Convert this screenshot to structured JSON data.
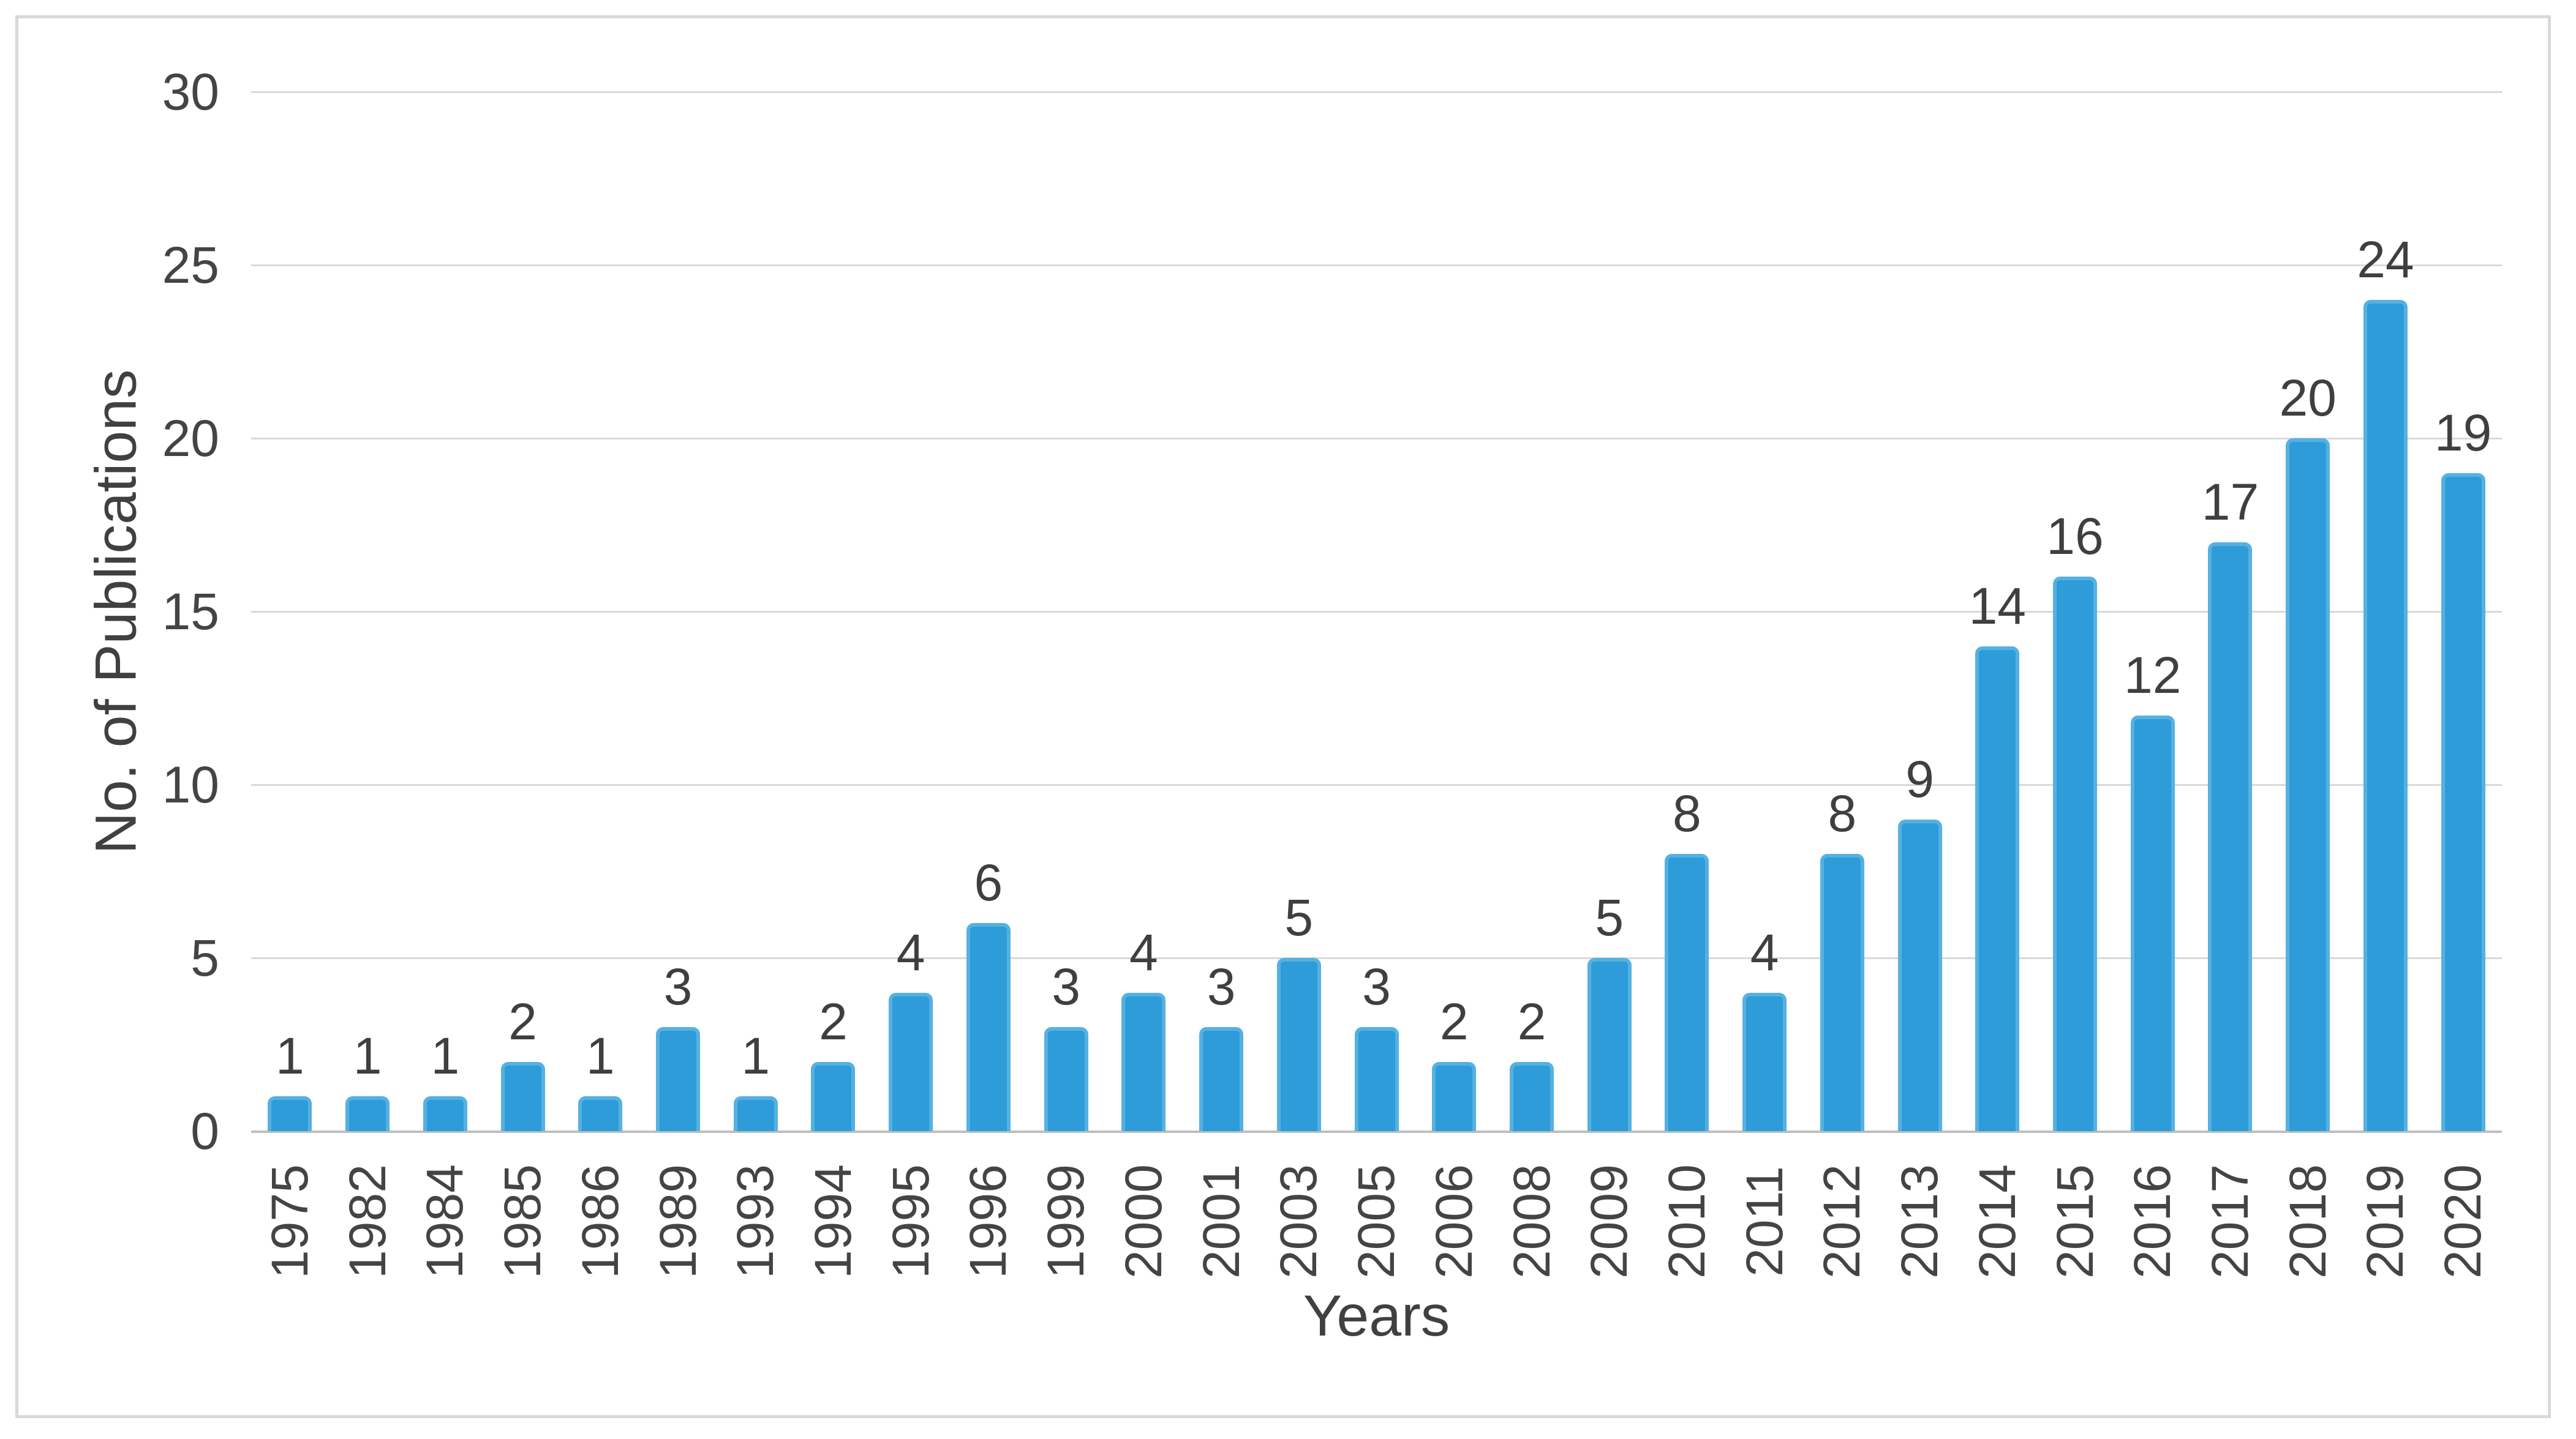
{
  "chart_data": {
    "type": "bar",
    "title": "",
    "xlabel": "Years",
    "ylabel": "No. of Publications",
    "categories": [
      "1975",
      "1982",
      "1984",
      "1985",
      "1986",
      "1989",
      "1993",
      "1994",
      "1995",
      "1996",
      "1999",
      "2000",
      "2001",
      "2003",
      "2005",
      "2006",
      "2008",
      "2009",
      "2010",
      "2011",
      "2012",
      "2013",
      "2014",
      "2015",
      "2016",
      "2017",
      "2018",
      "2019",
      "2020"
    ],
    "values": [
      1,
      1,
      1,
      2,
      1,
      3,
      1,
      2,
      4,
      6,
      3,
      4,
      3,
      5,
      3,
      2,
      2,
      5,
      8,
      4,
      8,
      9,
      14,
      16,
      12,
      17,
      20,
      24,
      19
    ],
    "ylim": [
      0,
      30
    ],
    "yticks": [
      0,
      5,
      10,
      15,
      20,
      25,
      30
    ],
    "grid": true,
    "legend": "none",
    "data_labels": true,
    "colors": {
      "bar_fill": "#2d9cd8",
      "bar_edge": "#55b1e2",
      "gridline": "#d9d9d9",
      "axis_line": "#bfbfbf",
      "text": "#3f3f3f",
      "frame_border": "#d9d9d9",
      "background": "#ffffff"
    }
  }
}
